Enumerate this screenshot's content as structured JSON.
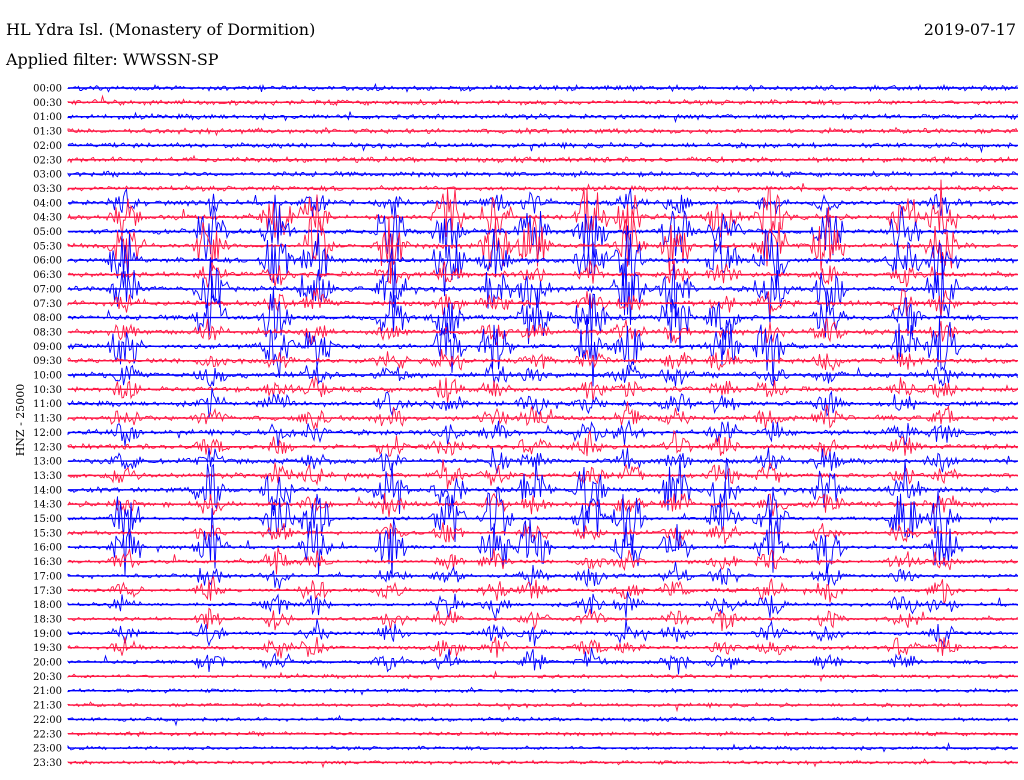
{
  "header": {
    "station": "HL Ydra Isl. (Monastery of Dormition)",
    "filter": "Applied filter: WWSSN-SP",
    "date": "2019-07-17",
    "channel_label": "HNZ - 25000"
  },
  "colors": {
    "even_trace": "#0000ff",
    "odd_trace": "#ff1744",
    "background": "#ffffff"
  },
  "chart_data": {
    "type": "seismogram-helicorder",
    "title": "HL Ydra Isl. (Monastery of Dormition)",
    "ylabel": "HNZ - 25000",
    "row_labels": [
      "00:00",
      "00:30",
      "01:00",
      "01:30",
      "02:00",
      "02:30",
      "03:00",
      "03:30",
      "04:00",
      "04:30",
      "05:00",
      "05:30",
      "06:00",
      "06:30",
      "07:00",
      "07:30",
      "08:00",
      "08:30",
      "09:00",
      "09:30",
      "10:00",
      "10:30",
      "11:00",
      "11:30",
      "12:00",
      "12:30",
      "13:00",
      "13:30",
      "14:00",
      "14:30",
      "15:00",
      "15:30",
      "16:00",
      "16:30",
      "17:00",
      "17:30",
      "18:00",
      "18:30",
      "19:00",
      "19:30",
      "20:00",
      "20:30",
      "21:00",
      "21:30",
      "22:00",
      "22:30",
      "23:00",
      "23:30"
    ],
    "row_minutes": 30,
    "trace_colors": [
      "blue",
      "red"
    ],
    "event_x_fractions": [
      0.06,
      0.15,
      0.22,
      0.26,
      0.34,
      0.4,
      0.45,
      0.49,
      0.55,
      0.59,
      0.64,
      0.69,
      0.74,
      0.8,
      0.88,
      0.92
    ],
    "activity_peak_rows": [
      9,
      10,
      11,
      12,
      14,
      16,
      18,
      28,
      30,
      32
    ]
  }
}
